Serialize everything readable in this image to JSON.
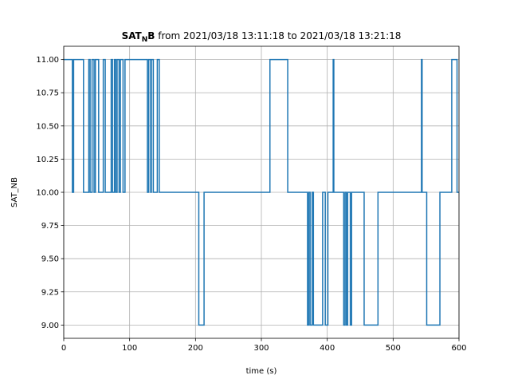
{
  "chart_data": {
    "type": "line",
    "drawstyle": "steps-post",
    "title": {
      "var_main": "SAT",
      "var_sub": "N",
      "var_end": "B",
      "rest": " from 2021/03/18 13:11:18 to 2021/03/18 13:21:18"
    },
    "xlabel": "time (s)",
    "ylabel": "SAT_NB",
    "xlim": [
      0,
      600
    ],
    "ylim": [
      8.9,
      11.1
    ],
    "grid": true,
    "x_ticks": [
      0,
      100,
      200,
      300,
      400,
      500,
      600
    ],
    "x_tick_labels": [
      "0",
      "100",
      "200",
      "300",
      "400",
      "500",
      "600"
    ],
    "y_ticks": [
      9.0,
      9.25,
      9.5,
      9.75,
      10.0,
      10.25,
      10.5,
      10.75,
      11.0
    ],
    "y_tick_labels": [
      "9.00",
      "9.25",
      "9.50",
      "9.75",
      "10.00",
      "10.25",
      "10.50",
      "10.75",
      "11.00"
    ],
    "line_color": "#1f77b4",
    "series": [
      {
        "x": [
          0,
          13,
          15,
          30,
          38,
          40,
          43,
          46,
          48,
          53,
          60,
          63,
          72,
          74,
          77,
          79,
          81,
          84,
          86,
          90,
          93,
          95,
          127,
          129,
          132,
          133,
          136,
          142,
          145,
          205,
          210,
          213,
          311,
          313,
          340,
          370,
          372,
          374,
          377,
          379,
          393,
          397,
          401,
          407,
          409,
          410,
          425,
          427,
          429,
          431,
          435,
          437,
          454,
          456,
          477,
          479,
          543,
          544,
          551,
          553,
          571,
          589,
          597,
          600
        ],
        "y": [
          11,
          10,
          11,
          10,
          11,
          10,
          11,
          10,
          11,
          10,
          11,
          10,
          11,
          10,
          11,
          10,
          11,
          10,
          11,
          10,
          11,
          11,
          10,
          11,
          10,
          11,
          10,
          11,
          10,
          9,
          9,
          10,
          10,
          11,
          10,
          9,
          10,
          9,
          10,
          9,
          10,
          9,
          10,
          10,
          11,
          10,
          9,
          10,
          9,
          10,
          9,
          10,
          10,
          9,
          10,
          10,
          11,
          10,
          9,
          9,
          10,
          11,
          10,
          10
        ]
      }
    ]
  }
}
